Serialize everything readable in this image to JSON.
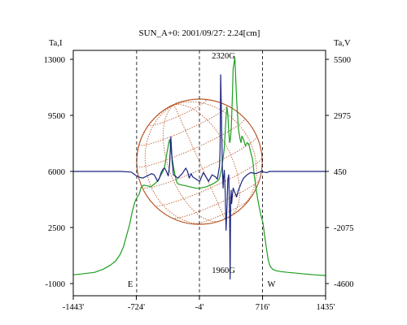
{
  "chart_data": {
    "type": "line",
    "title": "SUN_A+0: 2001/09/27: 2.24[cm]",
    "ylabel_left": "Ta,I",
    "ylabel_right": "Ta,V",
    "x_ticks": [
      {
        "value": -1443,
        "label": "-1443'"
      },
      {
        "value": -724,
        "label": "-724'"
      },
      {
        "value": -4,
        "label": "-4'"
      },
      {
        "value": 716,
        "label": "716'"
      },
      {
        "value": 1435,
        "label": "1435'"
      }
    ],
    "xlim": [
      -1443,
      1435
    ],
    "y_left_ticks": [
      13000,
      9500,
      6000,
      2500,
      -1000
    ],
    "y_left_lim": [
      -1000,
      13000
    ],
    "y_right_ticks": [
      5500,
      2975,
      450,
      -2075,
      -4600
    ],
    "y_right_lim": [
      -4600,
      5500
    ],
    "y_left_tick_labels": [
      "13000",
      "9500",
      "6000",
      "2500",
      "-1000"
    ],
    "y_right_tick_labels": [
      "5500",
      "2975",
      "450",
      "-2075",
      "-4600"
    ],
    "vertical_lines": [
      {
        "x": -720,
        "label": "E"
      },
      {
        "x": -4,
        "label": ""
      },
      {
        "x": 716,
        "label": "W"
      }
    ],
    "annotations": [
      {
        "text": "2320G",
        "x": 270,
        "y": 5540,
        "axis": "right"
      },
      {
        "text": "1960G",
        "x": 270,
        "y": -4120,
        "axis": "right"
      }
    ],
    "sun_disk": {
      "center_x": -4,
      "radius_x": 716,
      "color": "#b5501e"
    },
    "series": [
      {
        "axis": "left",
        "color": "#1e9e1e",
        "x": [
          -1443,
          -1350,
          -1200,
          -1100,
          -1020,
          -960,
          -910,
          -870,
          -835,
          -800,
          -770,
          -740,
          -720,
          -705,
          -690,
          -680,
          -670,
          -640,
          -600,
          -560,
          -520,
          -480,
          -440,
          -420,
          -400,
          -380,
          -360,
          -345,
          -335,
          -320,
          -300,
          -280,
          -260,
          -240,
          -200,
          -160,
          -120,
          -80,
          -40,
          0,
          40,
          80,
          120,
          160,
          200,
          220,
          235,
          250,
          265,
          280,
          290,
          300,
          310,
          320,
          330,
          340,
          350,
          360,
          370,
          380,
          400,
          420,
          440,
          460,
          470,
          480,
          500,
          520,
          540,
          560,
          580,
          590,
          600,
          610,
          620,
          640,
          660,
          680,
          700,
          720,
          740,
          760,
          780,
          800,
          830,
          870,
          920,
          1000,
          1100,
          1200,
          1300,
          1435
        ],
        "y": [
          -450,
          -400,
          -300,
          -100,
          150,
          400,
          800,
          1300,
          2000,
          2700,
          3500,
          4100,
          4350,
          4450,
          4600,
          4800,
          5000,
          5150,
          5100,
          5050,
          5200,
          5400,
          5800,
          6000,
          6300,
          7000,
          7600,
          8000,
          7700,
          7000,
          6300,
          5700,
          5300,
          5200,
          5150,
          5100,
          5050,
          5000,
          4950,
          4950,
          5000,
          5050,
          5150,
          5250,
          5400,
          5500,
          5800,
          6200,
          6800,
          7500,
          8500,
          9400,
          10000,
          9600,
          8500,
          7800,
          8000,
          8800,
          10400,
          12400,
          13100,
          10500,
          8700,
          8000,
          7800,
          8200,
          8000,
          7600,
          7800,
          7700,
          7200,
          7000,
          6800,
          6400,
          5800,
          5000,
          4300,
          3700,
          3200,
          2800,
          2000,
          1200,
          500,
          100,
          -100,
          -200,
          -250,
          -300,
          -350,
          -400,
          -450,
          -500
        ]
      },
      {
        "axis": "right",
        "color": "#1a237e",
        "x": [
          -1443,
          -900,
          -780,
          -740,
          -700,
          -650,
          -600,
          -550,
          -520,
          -500,
          -480,
          -460,
          -440,
          -420,
          -400,
          -380,
          -360,
          -345,
          -330,
          -315,
          -300,
          -250,
          -200,
          -160,
          -140,
          -120,
          -100,
          -80,
          -40,
          0,
          40,
          80,
          100,
          140,
          180,
          200,
          225,
          232,
          238,
          245,
          258,
          266,
          272,
          280,
          290,
          300,
          310,
          320,
          330,
          340,
          346,
          352,
          358,
          364,
          370,
          380,
          400,
          420,
          440,
          460,
          480,
          500,
          540,
          580,
          640,
          700,
          760,
          800,
          900,
          1100,
          1435
        ],
        "y": [
          450,
          450,
          420,
          300,
          200,
          150,
          250,
          350,
          300,
          150,
          0,
          150,
          400,
          550,
          600,
          450,
          250,
          700,
          2000,
          900,
          300,
          150,
          350,
          600,
          450,
          150,
          350,
          200,
          100,
          0,
          400,
          150,
          0,
          300,
          200,
          100,
          700,
          1500,
          4800,
          3500,
          600,
          -300,
          200,
          500,
          -500,
          -2200,
          -1200,
          100,
          300,
          -1400,
          -4400,
          -1000,
          -400,
          -1000,
          -700,
          -300,
          -500,
          -700,
          -400,
          -200,
          0,
          150,
          300,
          400,
          350,
          450,
          400,
          450,
          450,
          450,
          450
        ]
      }
    ]
  }
}
